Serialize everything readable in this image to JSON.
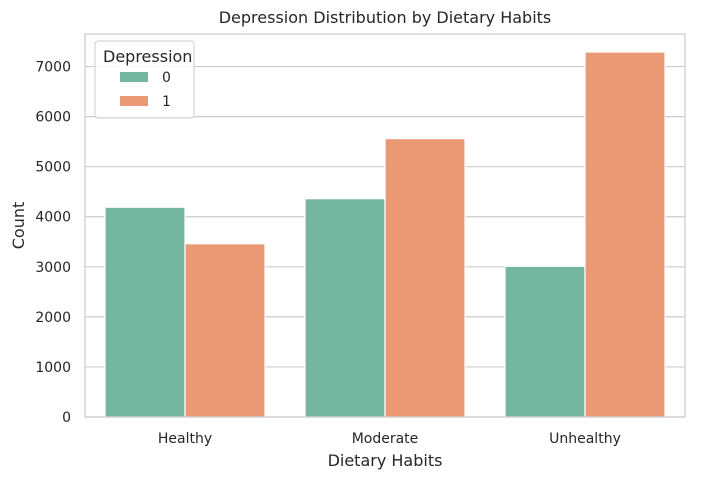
{
  "chart_data": {
    "type": "bar",
    "title": "Depression Distribution by Dietary Habits",
    "xlabel": "Dietary Habits",
    "ylabel": "Count",
    "categories": [
      "Healthy",
      "Moderate",
      "Unhealthy"
    ],
    "series": [
      {
        "name": "0",
        "values": [
          4190,
          4360,
          3010
        ],
        "color": "#74b6a0"
      },
      {
        "name": "1",
        "values": [
          3460,
          5560,
          7290
        ],
        "color": "#eb9874"
      }
    ],
    "ylim": [
      0,
      7650
    ],
    "yticks": [
      0,
      1000,
      2000,
      3000,
      4000,
      5000,
      6000,
      7000
    ],
    "grid": true,
    "legend": {
      "title": "Depression",
      "placement": "top-left"
    },
    "colors": {
      "grid": "#cccccc",
      "text": "#262626",
      "axis": "#cccccc"
    }
  }
}
